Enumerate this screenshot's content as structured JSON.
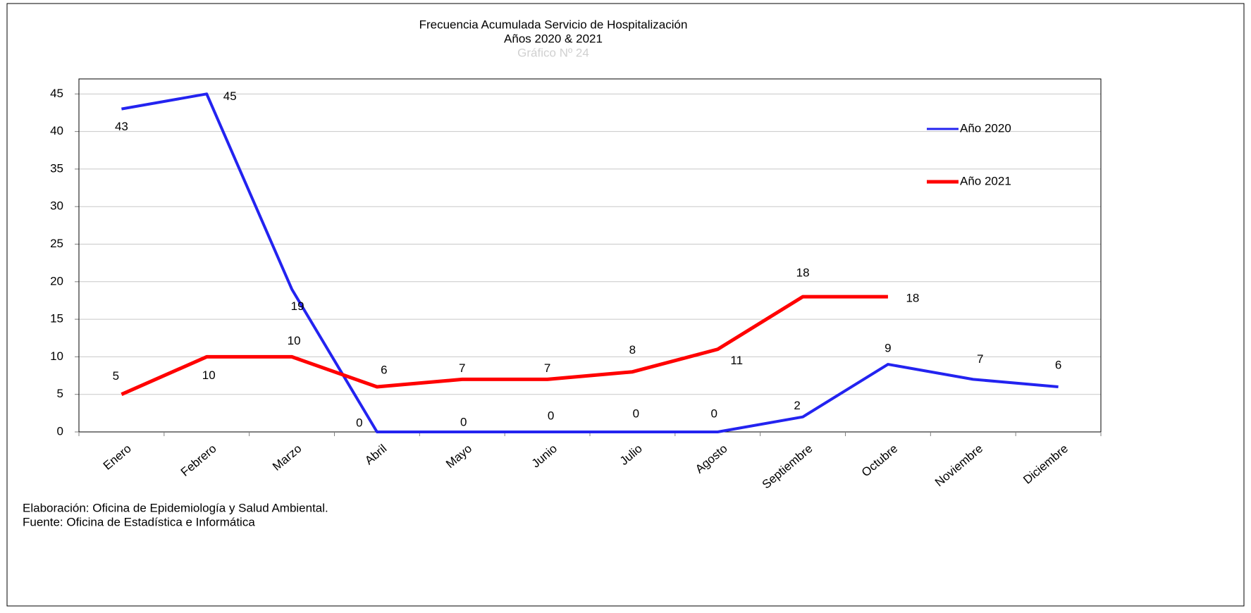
{
  "chart_data": {
    "type": "line",
    "title": "Frecuencia Acumulada Servicio de Hospitalización",
    "subtitle": "Años 2020 & 2021",
    "caption": "Gráfico Nº 24",
    "categories": [
      "Enero",
      "Febrero",
      "Marzo",
      "Abril",
      "Mayo",
      "Junio",
      "Julio",
      "Agosto",
      "Septiembre",
      "Octubre",
      "Noviembre",
      "Diciembre"
    ],
    "series": [
      {
        "name": "Año 2020",
        "color": "#2323f0",
        "values": [
          43,
          45,
          19,
          0,
          0,
          0,
          0,
          0,
          2,
          9,
          7,
          6
        ]
      },
      {
        "name": "Año 2021",
        "color": "#ff0000",
        "values": [
          5,
          10,
          10,
          6,
          7,
          7,
          8,
          11,
          18,
          18,
          null,
          null
        ]
      }
    ],
    "ylim": [
      0,
      47
    ],
    "yticks": [
      0,
      5,
      10,
      15,
      20,
      25,
      30,
      35,
      40,
      45
    ],
    "grid": true,
    "legend": "right",
    "footer": [
      "Elaboración: Oficina de Epidemiología  y Salud Ambiental.",
      "Fuente:  Oficina de Estadística e Informática"
    ]
  }
}
